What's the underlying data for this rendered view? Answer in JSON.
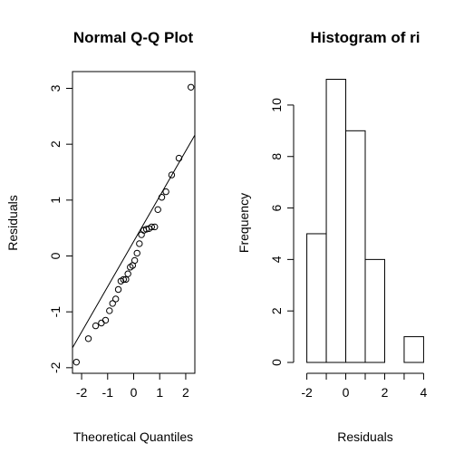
{
  "chart_data": [
    {
      "type": "scatter",
      "title": "Normal Q-Q Plot",
      "xlabel": "Theoretical Quantiles",
      "ylabel": "Residuals",
      "xlim": [
        -2.35,
        2.35
      ],
      "ylim": [
        -2.1,
        3.3
      ],
      "xticks": [
        -2,
        -1,
        0,
        1,
        2
      ],
      "yticks": [
        -2,
        -1,
        0,
        1,
        2,
        3
      ],
      "x": [
        -2.2,
        -1.74,
        -1.46,
        -1.24,
        -1.08,
        -0.93,
        -0.81,
        -0.69,
        -0.59,
        -0.49,
        -0.39,
        -0.3,
        -0.22,
        -0.13,
        -0.04,
        0.04,
        0.13,
        0.22,
        0.3,
        0.39,
        0.49,
        0.59,
        0.69,
        0.81,
        0.93,
        1.08,
        1.24,
        1.46,
        1.74,
        2.2
      ],
      "y": [
        -1.9,
        -1.48,
        -1.25,
        -1.2,
        -1.15,
        -0.98,
        -0.85,
        -0.77,
        -0.6,
        -0.45,
        -0.42,
        -0.42,
        -0.32,
        -0.2,
        -0.17,
        -0.08,
        0.05,
        0.22,
        0.38,
        0.46,
        0.48,
        0.49,
        0.52,
        0.52,
        0.83,
        1.05,
        1.15,
        1.45,
        1.75,
        3.02
      ],
      "reference_line": {
        "intercept": 0.26,
        "slope": 0.81
      },
      "grid": false
    },
    {
      "type": "bar",
      "title": "Histogram of ri",
      "xlabel": "Residuals",
      "ylabel": "Frequency",
      "bins": [
        [
          -2,
          -1
        ],
        [
          -1,
          0
        ],
        [
          0,
          1
        ],
        [
          1,
          2
        ],
        [
          2,
          3
        ],
        [
          3,
          4
        ]
      ],
      "values": [
        5,
        11,
        9,
        4,
        0,
        1
      ],
      "xticks": [
        -2,
        0,
        2,
        4
      ],
      "yticks": [
        0,
        2,
        4,
        6,
        8,
        10
      ],
      "xlim": [
        -2.12,
        4.12
      ],
      "ylim": [
        0,
        11.3
      ],
      "grid": false
    }
  ]
}
